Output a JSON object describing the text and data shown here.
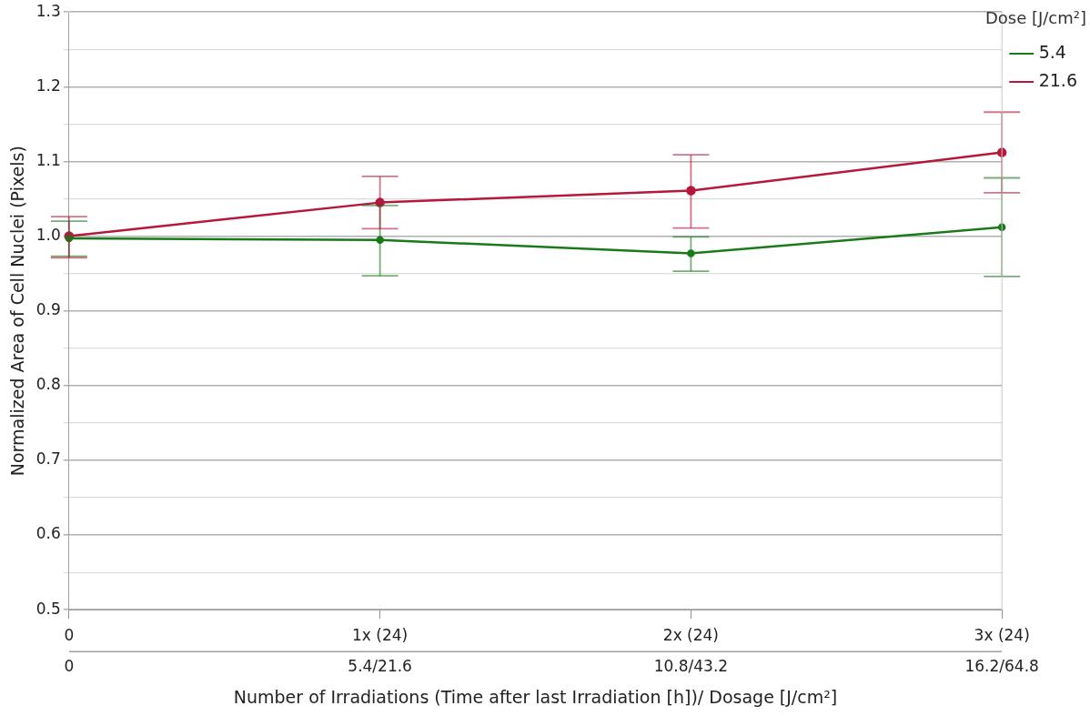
{
  "chart_data": {
    "type": "line",
    "xlabel": "Number of Irradiations (Time after last Irradiation [h])/ Dosage [J/cm²]",
    "ylabel": "Normalized Area of Cell Nuclei (Pixels)",
    "legend_title": "Dose [J/cm²]",
    "categories": [
      "0\n0",
      "1x (24)\n5.4/21.6",
      "2x (24)\n10.8/43.2",
      "3x (24)\n16.2/64.8"
    ],
    "series": [
      {
        "name": "5.4",
        "color": "#1a7a1a",
        "values": [
          0.997,
          0.995,
          0.977,
          1.012
        ],
        "errors": [
          [
            0.973,
            1.02
          ],
          [
            0.947,
            1.041
          ],
          [
            0.953,
            0.999
          ],
          [
            0.946,
            1.078
          ]
        ]
      },
      {
        "name": "21.6",
        "color": "#b5183a",
        "values": [
          1.0,
          1.045,
          1.061,
          1.112
        ],
        "errors": [
          [
            0.971,
            1.026
          ],
          [
            1.01,
            1.08
          ],
          [
            1.011,
            1.109
          ],
          [
            1.058,
            1.166
          ]
        ]
      }
    ],
    "ylim": [
      0.5,
      1.3
    ],
    "yticks": [
      0.5,
      {
        "value": 0.55,
        "label": null
      },
      0.6,
      {
        "value": 0.65,
        "label": null
      },
      0.7,
      {
        "value": 0.75,
        "label": null
      },
      0.8,
      {
        "value": 0.85,
        "label": null
      },
      0.9,
      {
        "value": 0.95,
        "label": null
      },
      {
        "value": 1,
        "label": "1.0"
      },
      {
        "value": 1.05,
        "label": null
      },
      1.1,
      {
        "value": 1.15,
        "label": null
      },
      1.2,
      {
        "value": 1.25,
        "label": null
      },
      1.3
    ],
    "grid": "y",
    "legend": "top right",
    "marker": "circle",
    "line_style": "solid"
  }
}
